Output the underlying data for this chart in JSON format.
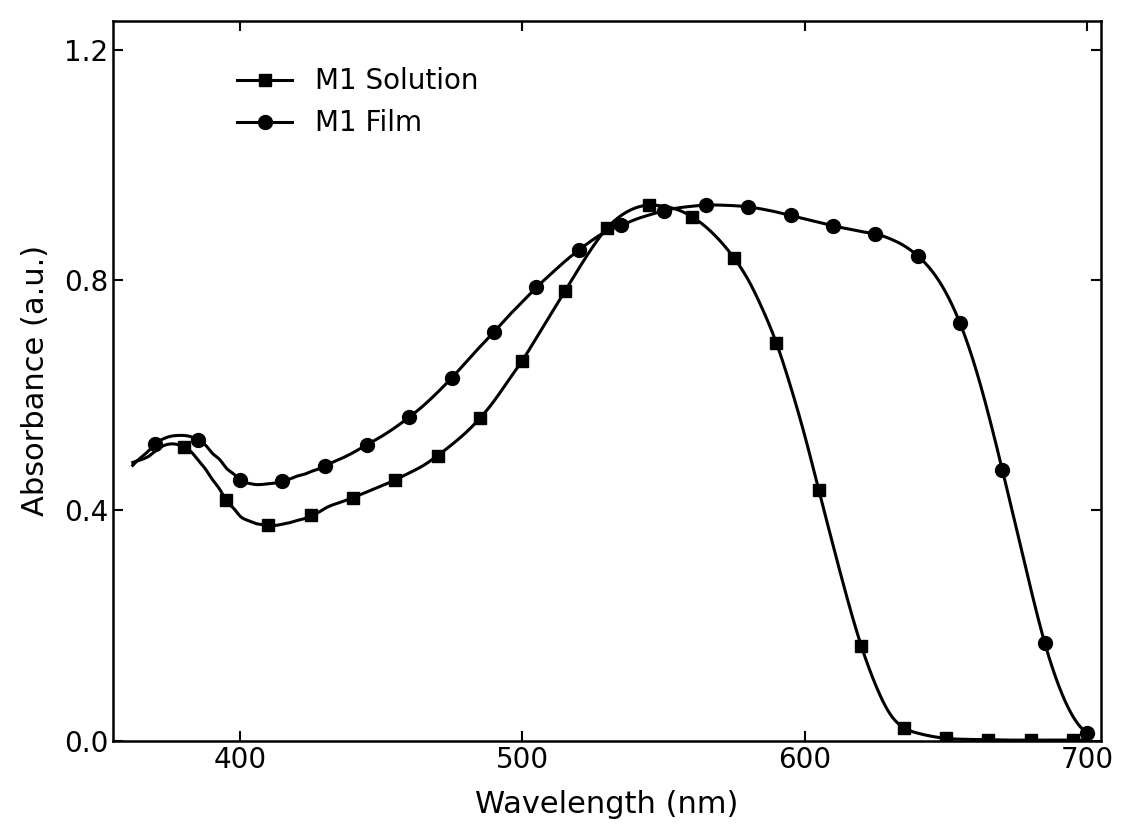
{
  "solution_x": [
    362,
    365,
    368,
    370,
    372,
    375,
    378,
    380,
    383,
    385,
    388,
    390,
    393,
    395,
    398,
    400,
    403,
    405,
    408,
    410,
    413,
    415,
    418,
    420,
    423,
    425,
    428,
    430,
    435,
    440,
    445,
    450,
    455,
    460,
    465,
    470,
    475,
    480,
    485,
    490,
    495,
    500,
    505,
    510,
    515,
    520,
    525,
    530,
    535,
    540,
    545,
    550,
    555,
    560,
    565,
    570,
    575,
    580,
    585,
    590,
    595,
    600,
    605,
    610,
    615,
    620,
    625,
    630,
    640,
    650,
    660,
    670,
    680,
    690,
    700
  ],
  "solution_y": [
    0.483,
    0.488,
    0.495,
    0.503,
    0.51,
    0.515,
    0.514,
    0.51,
    0.5,
    0.488,
    0.47,
    0.455,
    0.435,
    0.418,
    0.402,
    0.39,
    0.382,
    0.378,
    0.375,
    0.374,
    0.374,
    0.376,
    0.379,
    0.382,
    0.386,
    0.391,
    0.397,
    0.403,
    0.413,
    0.422,
    0.432,
    0.442,
    0.453,
    0.465,
    0.478,
    0.495,
    0.514,
    0.535,
    0.56,
    0.59,
    0.625,
    0.66,
    0.7,
    0.74,
    0.78,
    0.82,
    0.858,
    0.89,
    0.912,
    0.925,
    0.93,
    0.928,
    0.922,
    0.91,
    0.892,
    0.868,
    0.838,
    0.8,
    0.75,
    0.69,
    0.615,
    0.53,
    0.435,
    0.34,
    0.248,
    0.165,
    0.098,
    0.048,
    0.013,
    0.004,
    0.002,
    0.001,
    0.001,
    0.001,
    0.001
  ],
  "film_x": [
    362,
    365,
    368,
    370,
    372,
    375,
    378,
    380,
    383,
    385,
    388,
    390,
    393,
    395,
    398,
    400,
    403,
    405,
    408,
    410,
    413,
    415,
    418,
    420,
    423,
    425,
    428,
    430,
    435,
    440,
    445,
    450,
    455,
    460,
    465,
    470,
    475,
    480,
    485,
    490,
    495,
    500,
    505,
    510,
    515,
    520,
    525,
    530,
    535,
    540,
    545,
    550,
    555,
    560,
    565,
    570,
    575,
    580,
    585,
    590,
    595,
    600,
    605,
    610,
    615,
    620,
    625,
    630,
    635,
    640,
    645,
    650,
    655,
    660,
    665,
    670,
    675,
    680,
    685,
    690,
    695,
    700
  ],
  "film_y": [
    0.478,
    0.492,
    0.505,
    0.515,
    0.522,
    0.528,
    0.53,
    0.53,
    0.527,
    0.522,
    0.512,
    0.5,
    0.487,
    0.474,
    0.462,
    0.452,
    0.447,
    0.445,
    0.445,
    0.446,
    0.448,
    0.451,
    0.455,
    0.459,
    0.463,
    0.467,
    0.472,
    0.477,
    0.488,
    0.5,
    0.514,
    0.528,
    0.544,
    0.562,
    0.582,
    0.605,
    0.63,
    0.657,
    0.684,
    0.71,
    0.737,
    0.762,
    0.787,
    0.81,
    0.832,
    0.852,
    0.87,
    0.885,
    0.895,
    0.905,
    0.913,
    0.92,
    0.925,
    0.928,
    0.93,
    0.93,
    0.929,
    0.927,
    0.923,
    0.918,
    0.912,
    0.906,
    0.9,
    0.894,
    0.889,
    0.884,
    0.88,
    0.872,
    0.86,
    0.842,
    0.816,
    0.778,
    0.725,
    0.655,
    0.568,
    0.47,
    0.368,
    0.265,
    0.17,
    0.095,
    0.042,
    0.014
  ],
  "solution_marker_x": [
    380,
    395,
    410,
    425,
    440,
    455,
    470,
    485,
    500,
    515,
    530,
    545,
    560,
    575,
    590,
    605,
    620,
    635,
    650,
    665,
    680,
    695
  ],
  "film_marker_x": [
    370,
    385,
    400,
    415,
    430,
    445,
    460,
    475,
    490,
    505,
    520,
    535,
    550,
    565,
    580,
    595,
    610,
    625,
    640,
    655,
    670,
    685,
    700
  ],
  "line_color": "#000000",
  "xlabel": "Wavelength (nm)",
  "ylabel": "Absorbance (a.u.)",
  "legend_solution": "M1 Solution",
  "legend_film": "M1 Film",
  "xlim": [
    355,
    705
  ],
  "ylim": [
    0,
    1.25
  ],
  "yticks": [
    0.0,
    0.4,
    0.8,
    1.2
  ],
  "xticks": [
    400,
    500,
    600,
    700
  ],
  "axis_fontsize": 22,
  "tick_fontsize": 20,
  "legend_fontsize": 20
}
